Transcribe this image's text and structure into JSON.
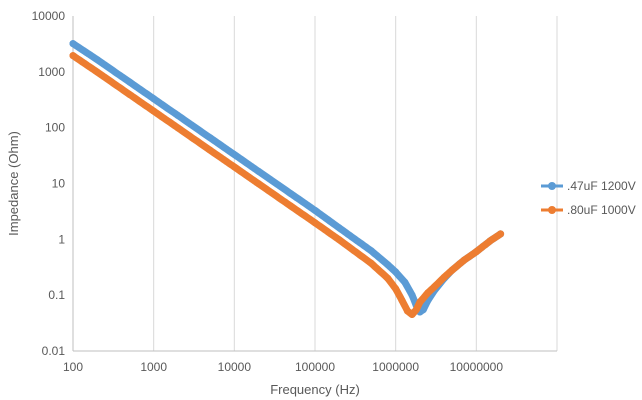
{
  "chart_data": {
    "type": "line",
    "title": "",
    "xlabel": "Frequency (Hz)",
    "ylabel": "Impedance (Ohm)",
    "x_scale": "log",
    "y_scale": "log",
    "xlim": [
      100,
      100000000
    ],
    "ylim": [
      0.01,
      10000
    ],
    "x_ticks": [
      "100",
      "1000",
      "10000",
      "100000",
      "1000000",
      "10000000"
    ],
    "y_ticks": [
      "0.01",
      "0.1",
      "1",
      "10",
      "100",
      "1000",
      "10000"
    ],
    "grid": "vertical major gridlines",
    "legend_position": "right",
    "series": [
      {
        "name": ".47uF 1200V",
        "color": "#5B9BD5",
        "x": [
          100,
          200,
          500,
          1000,
          2000,
          5000,
          10000,
          20000,
          50000,
          100000,
          200000,
          500000,
          800000,
          1000000,
          1300000,
          1600000,
          1800000,
          2000000,
          2200000,
          2500000,
          3000000,
          4000000,
          5000000,
          7000000,
          10000000,
          15000000,
          20000000
        ],
        "y": [
          3200,
          1650,
          660,
          330,
          165,
          66,
          33,
          16.5,
          6.6,
          3.3,
          1.6,
          0.62,
          0.35,
          0.26,
          0.17,
          0.1,
          0.065,
          0.05,
          0.055,
          0.08,
          0.12,
          0.2,
          0.28,
          0.42,
          0.6,
          0.95,
          1.25
        ]
      },
      {
        "name": ".80uF 1000V",
        "color": "#ED7D31",
        "x": [
          100,
          200,
          500,
          1000,
          2000,
          5000,
          10000,
          20000,
          50000,
          100000,
          200000,
          500000,
          800000,
          1000000,
          1200000,
          1400000,
          1600000,
          1800000,
          2000000,
          2500000,
          3000000,
          4000000,
          5000000,
          7000000,
          10000000,
          15000000,
          20000000
        ],
        "y": [
          1950,
          990,
          395,
          198,
          99,
          39.5,
          19.8,
          9.9,
          3.95,
          1.98,
          0.98,
          0.37,
          0.2,
          0.13,
          0.08,
          0.052,
          0.045,
          0.055,
          0.075,
          0.11,
          0.14,
          0.21,
          0.28,
          0.42,
          0.6,
          0.95,
          1.25
        ]
      }
    ]
  }
}
